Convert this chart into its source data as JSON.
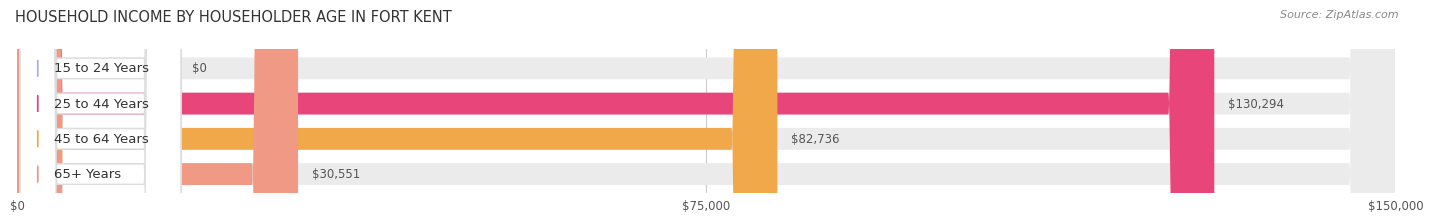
{
  "title": "HOUSEHOLD INCOME BY HOUSEHOLDER AGE IN FORT KENT",
  "source": "Source: ZipAtlas.com",
  "categories": [
    "15 to 24 Years",
    "25 to 44 Years",
    "45 to 64 Years",
    "65+ Years"
  ],
  "values": [
    0,
    130294,
    82736,
    30551
  ],
  "bar_colors": [
    "#aab0dc",
    "#e8457a",
    "#f0a84a",
    "#f09a85"
  ],
  "bar_bg_color": "#ebebeb",
  "label_strings": [
    "$0",
    "$130,294",
    "$82,736",
    "$30,551"
  ],
  "x_ticks": [
    0,
    75000,
    150000
  ],
  "x_tick_labels": [
    "$0",
    "$75,000",
    "$150,000"
  ],
  "xlim": [
    0,
    150000
  ],
  "bg_color": "#ffffff",
  "title_fontsize": 10.5,
  "source_fontsize": 8,
  "bar_label_fontsize": 8.5,
  "category_fontsize": 9.5,
  "tick_fontsize": 8.5
}
